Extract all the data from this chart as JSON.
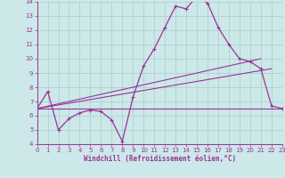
{
  "xlabel": "Windchill (Refroidissement éolien,°C)",
  "background_color": "#cce8e8",
  "grid_color": "#aacccc",
  "line_color": "#993399",
  "xlim": [
    0,
    23
  ],
  "ylim": [
    4,
    14
  ],
  "xticks": [
    0,
    1,
    2,
    3,
    4,
    5,
    6,
    7,
    8,
    9,
    10,
    11,
    12,
    13,
    14,
    15,
    16,
    17,
    18,
    19,
    20,
    21,
    22,
    23
  ],
  "yticks": [
    4,
    5,
    6,
    7,
    8,
    9,
    10,
    11,
    12,
    13,
    14
  ],
  "curve1_x": [
    0,
    1,
    2,
    3,
    4,
    5,
    6,
    7,
    8,
    9,
    10,
    11,
    12,
    13,
    14,
    15,
    16,
    17,
    18,
    19,
    20,
    21,
    22,
    23
  ],
  "curve1_y": [
    6.5,
    7.7,
    5.0,
    5.8,
    6.2,
    6.4,
    6.3,
    5.7,
    4.2,
    7.3,
    9.5,
    10.7,
    12.2,
    13.7,
    13.5,
    14.4,
    13.9,
    12.2,
    11.0,
    10.0,
    9.8,
    9.3,
    6.7,
    6.5
  ],
  "curve2_x": [
    0,
    21
  ],
  "curve2_y": [
    6.5,
    10.0
  ],
  "curve3_x": [
    0,
    22
  ],
  "curve3_y": [
    6.5,
    9.3
  ],
  "curve4_x": [
    0,
    23
  ],
  "curve4_y": [
    6.5,
    6.5
  ],
  "curve5_x": [
    0,
    22
  ],
  "curve5_y": [
    6.5,
    6.5
  ]
}
